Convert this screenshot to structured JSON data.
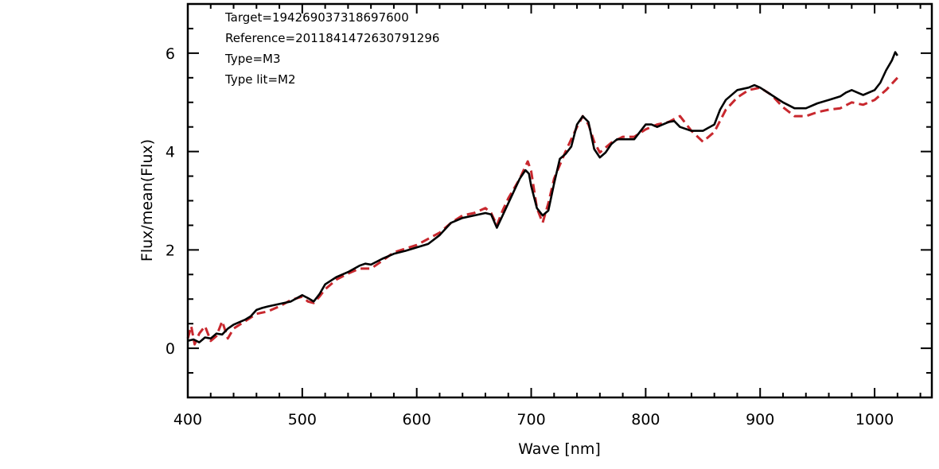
{
  "chart_data": {
    "type": "line",
    "title": "",
    "xlabel": "Wave [nm]",
    "ylabel": "Flux/mean(Flux)",
    "xlim": [
      400,
      1050
    ],
    "ylim": [
      -1,
      7
    ],
    "x_ticks": [
      400,
      500,
      600,
      700,
      800,
      900,
      1000
    ],
    "x_tick_labels": [
      "400",
      "500",
      "600",
      "700",
      "800",
      "900",
      "1000"
    ],
    "y_ticks": [
      0,
      2,
      4,
      6
    ],
    "y_tick_labels": [
      "0",
      "2",
      "4",
      "6"
    ],
    "grid": false,
    "annotations": [
      "Target=194269037318697600",
      "Reference=2011841472630791296",
      "Type=M3",
      "Type lit=M2"
    ],
    "series": [
      {
        "style": "solid",
        "color": "#000000",
        "x": [
          400,
          405,
          410,
          415,
          420,
          425,
          430,
          435,
          440,
          450,
          455,
          460,
          465,
          470,
          480,
          490,
          500,
          505,
          510,
          515,
          520,
          530,
          540,
          550,
          555,
          560,
          570,
          580,
          590,
          600,
          610,
          620,
          630,
          640,
          650,
          660,
          665,
          670,
          675,
          680,
          685,
          690,
          695,
          698,
          700,
          705,
          710,
          715,
          720,
          725,
          730,
          735,
          740,
          745,
          750,
          755,
          760,
          765,
          770,
          775,
          780,
          790,
          800,
          805,
          810,
          815,
          820,
          825,
          830,
          840,
          850,
          860,
          865,
          870,
          880,
          890,
          895,
          900,
          910,
          920,
          930,
          940,
          950,
          960,
          970,
          975,
          980,
          985,
          990,
          1000,
          1005,
          1010,
          1015,
          1018,
          1020
        ],
        "y": [
          0.15,
          0.18,
          0.12,
          0.22,
          0.2,
          0.3,
          0.28,
          0.4,
          0.48,
          0.58,
          0.65,
          0.78,
          0.82,
          0.85,
          0.9,
          0.95,
          1.08,
          1.02,
          0.95,
          1.1,
          1.3,
          1.45,
          1.55,
          1.68,
          1.72,
          1.7,
          1.82,
          1.92,
          1.98,
          2.05,
          2.12,
          2.3,
          2.55,
          2.65,
          2.7,
          2.75,
          2.72,
          2.45,
          2.7,
          2.95,
          3.2,
          3.45,
          3.62,
          3.55,
          3.3,
          2.85,
          2.7,
          2.8,
          3.35,
          3.85,
          3.95,
          4.1,
          4.55,
          4.72,
          4.6,
          4.05,
          3.88,
          3.98,
          4.15,
          4.25,
          4.25,
          4.25,
          4.55,
          4.55,
          4.5,
          4.55,
          4.6,
          4.62,
          4.5,
          4.42,
          4.42,
          4.55,
          4.85,
          5.05,
          5.25,
          5.3,
          5.35,
          5.3,
          5.15,
          5.0,
          4.88,
          4.88,
          4.98,
          5.05,
          5.12,
          5.2,
          5.25,
          5.2,
          5.15,
          5.25,
          5.4,
          5.65,
          5.85,
          6.02,
          5.95
        ]
      },
      {
        "style": "dashed",
        "color": "#c8282e",
        "x": [
          400,
          403,
          406,
          410,
          415,
          420,
          425,
          430,
          435,
          440,
          450,
          460,
          470,
          480,
          490,
          500,
          505,
          510,
          515,
          520,
          530,
          540,
          550,
          560,
          570,
          580,
          600,
          620,
          630,
          640,
          650,
          660,
          665,
          670,
          675,
          680,
          690,
          697,
          700,
          705,
          710,
          715,
          720,
          730,
          740,
          745,
          750,
          755,
          760,
          770,
          780,
          790,
          800,
          810,
          820,
          830,
          840,
          850,
          860,
          870,
          880,
          890,
          900,
          910,
          920,
          930,
          940,
          950,
          960,
          970,
          980,
          990,
          1000,
          1010,
          1020
        ],
        "y": [
          0.2,
          0.45,
          0.08,
          0.3,
          0.45,
          0.15,
          0.25,
          0.55,
          0.2,
          0.4,
          0.55,
          0.7,
          0.75,
          0.85,
          0.98,
          1.05,
          0.95,
          0.92,
          1.05,
          1.2,
          1.4,
          1.52,
          1.62,
          1.62,
          1.78,
          1.95,
          2.1,
          2.35,
          2.55,
          2.7,
          2.75,
          2.85,
          2.75,
          2.5,
          2.8,
          3.05,
          3.45,
          3.8,
          3.6,
          2.85,
          2.55,
          2.95,
          3.45,
          4.0,
          4.5,
          4.72,
          4.55,
          4.2,
          3.98,
          4.18,
          4.3,
          4.3,
          4.45,
          4.55,
          4.6,
          4.72,
          4.42,
          4.2,
          4.4,
          4.85,
          5.1,
          5.25,
          5.3,
          5.15,
          4.9,
          4.72,
          4.72,
          4.8,
          4.85,
          4.88,
          5.0,
          4.95,
          5.05,
          5.25,
          5.5
        ]
      }
    ]
  }
}
